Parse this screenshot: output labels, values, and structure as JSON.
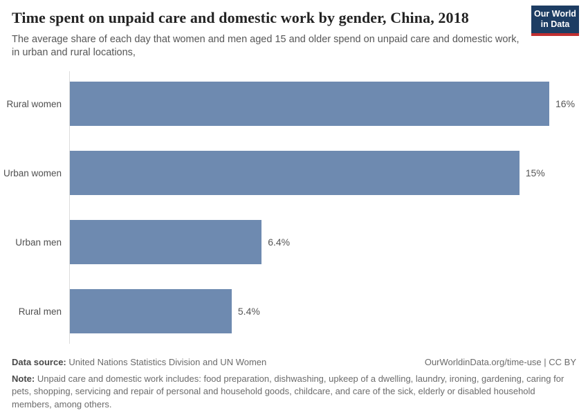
{
  "header": {
    "title": "Time spent on unpaid care and domestic work by gender, China, 2018",
    "subtitle": "The average share of each day that women and men aged 15 and older spend on unpaid care and domestic work, in urban and rural locations,",
    "logo": {
      "line1": "Our World",
      "line2": "in Data"
    }
  },
  "chart_data": {
    "type": "bar",
    "orientation": "horizontal",
    "categories": [
      "Rural women",
      "Urban women",
      "Urban men",
      "Rural men"
    ],
    "values": [
      16,
      15,
      6.4,
      5.4
    ],
    "value_labels": [
      "16%",
      "15%",
      "6.4%",
      "5.4%"
    ],
    "unit": "%",
    "xlim": [
      0,
      16
    ],
    "grid": "off",
    "legend": "none",
    "bar_color": "#6e8ab0"
  },
  "footer": {
    "data_source_label": "Data source:",
    "data_source": "United Nations Statistics Division and UN Women",
    "license": "OurWorldinData.org/time-use | CC BY",
    "note_label": "Note:",
    "note": "Unpaid care and domestic work includes: food preparation, dishwashing, upkeep of a dwelling, laundry, ironing, gardening, caring for pets, shopping, servicing and repair of personal and household goods, childcare, and care of the sick, elderly or disabled household members, among others."
  },
  "colors": {
    "bar": "#6e8ab0",
    "logo_navy": "#1d3d63",
    "logo_red": "#c12f30",
    "axis_line": "#dcdcdc"
  }
}
